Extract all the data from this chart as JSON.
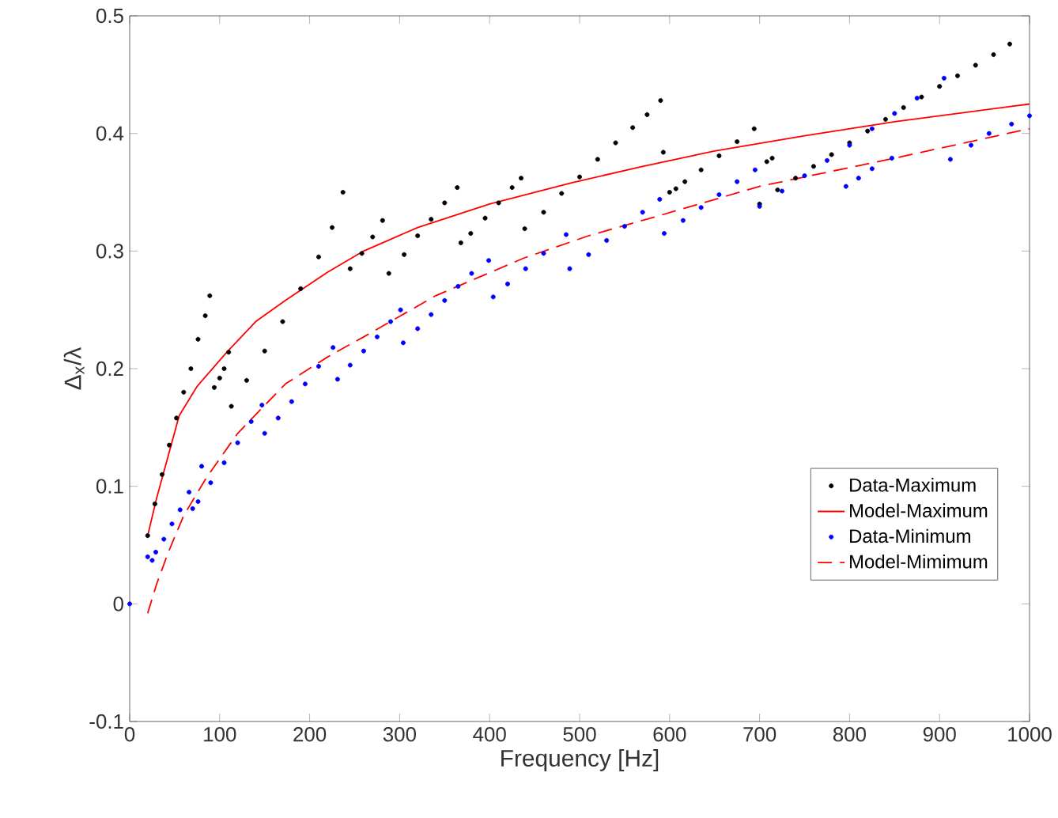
{
  "chart_data": {
    "type": "scatter",
    "xlabel": "Frequency [Hz]",
    "ylabel": "Δ$_{x}$/λ",
    "xlim": [
      0,
      1000
    ],
    "ylim": [
      -0.1,
      0.5
    ],
    "xticks": [
      0,
      100,
      200,
      300,
      400,
      500,
      600,
      700,
      800,
      900,
      1000
    ],
    "yticks": [
      -0.1,
      0,
      0.1,
      0.2,
      0.3,
      0.4,
      0.5
    ],
    "legend": "bottom right",
    "grid": false,
    "series": [
      {
        "name": "Data-Maximum",
        "marker": "circle",
        "color": "#000000",
        "x": [
          20,
          28,
          36,
          44,
          52,
          60,
          68,
          76,
          84,
          89,
          94,
          100,
          105,
          110,
          113,
          130,
          150,
          170,
          190,
          210,
          225,
          237,
          245,
          258,
          270,
          281,
          288,
          305,
          320,
          335,
          350,
          364,
          368,
          379,
          395,
          410,
          425,
          435,
          439,
          460,
          480,
          500,
          520,
          540,
          559,
          575,
          590,
          593,
          600,
          607,
          617,
          635,
          655,
          675,
          694,
          708,
          714,
          700,
          720,
          740,
          760,
          780,
          800,
          820,
          840,
          860,
          880,
          900,
          920,
          940,
          960,
          978
        ],
        "values": [
          0.058,
          0.085,
          0.11,
          0.135,
          0.158,
          0.18,
          0.2,
          0.225,
          0.245,
          0.262,
          0.184,
          0.192,
          0.2,
          0.214,
          0.168,
          0.19,
          0.215,
          0.24,
          0.268,
          0.295,
          0.32,
          0.35,
          0.285,
          0.298,
          0.312,
          0.326,
          0.281,
          0.297,
          0.313,
          0.327,
          0.341,
          0.354,
          0.307,
          0.315,
          0.328,
          0.341,
          0.354,
          0.362,
          0.319,
          0.333,
          0.349,
          0.363,
          0.378,
          0.392,
          0.405,
          0.416,
          0.428,
          0.384,
          0.35,
          0.353,
          0.359,
          0.369,
          0.381,
          0.393,
          0.404,
          0.376,
          0.379,
          0.34,
          0.352,
          0.362,
          0.372,
          0.382,
          0.392,
          0.402,
          0.412,
          0.422,
          0.431,
          0.44,
          0.449,
          0.458,
          0.467,
          0.476
        ]
      },
      {
        "name": "Model-Maximum",
        "type": "line",
        "marker": "none",
        "line_style": "solid",
        "color": "#ff0000",
        "x": [
          20,
          30,
          40,
          55,
          75,
          108,
          140,
          173,
          220,
          260,
          320,
          400,
          491,
          570,
          650,
          750,
          850,
          1000
        ],
        "values": [
          0.058,
          0.09,
          0.118,
          0.16,
          0.185,
          0.214,
          0.24,
          0.258,
          0.282,
          0.3,
          0.32,
          0.34,
          0.358,
          0.372,
          0.385,
          0.398,
          0.41,
          0.425
        ]
      },
      {
        "name": "Data-Minimum",
        "marker": "circle",
        "color": "#0000ff",
        "x": [
          0,
          20,
          25,
          29,
          38,
          47,
          56,
          66,
          70,
          80,
          76,
          90,
          105,
          120,
          135,
          147,
          150,
          165,
          180,
          195,
          210,
          226,
          231,
          245,
          260,
          275,
          290,
          301,
          304,
          320,
          335,
          350,
          365,
          380,
          399,
          404,
          420,
          440,
          460,
          485,
          489,
          510,
          530,
          550,
          570,
          589,
          594,
          615,
          635,
          655,
          675,
          695,
          700,
          725,
          750,
          775,
          800,
          825,
          850,
          875,
          905,
          796,
          810,
          825,
          847,
          912,
          935,
          955,
          980,
          1000
        ],
        "values": [
          0,
          0.04,
          0.037,
          0.044,
          0.055,
          0.068,
          0.08,
          0.095,
          0.081,
          0.117,
          0.087,
          0.103,
          0.12,
          0.137,
          0.155,
          0.169,
          0.145,
          0.158,
          0.172,
          0.187,
          0.202,
          0.218,
          0.191,
          0.203,
          0.215,
          0.227,
          0.24,
          0.25,
          0.222,
          0.234,
          0.246,
          0.258,
          0.27,
          0.281,
          0.292,
          0.261,
          0.272,
          0.285,
          0.298,
          0.314,
          0.285,
          0.297,
          0.309,
          0.321,
          0.333,
          0.344,
          0.315,
          0.326,
          0.337,
          0.348,
          0.359,
          0.369,
          0.338,
          0.351,
          0.364,
          0.377,
          0.39,
          0.404,
          0.417,
          0.43,
          0.447,
          0.355,
          0.362,
          0.37,
          0.379,
          0.378,
          0.39,
          0.4,
          0.408,
          0.415
        ]
      },
      {
        "name": "Model-Mimimum",
        "type": "line",
        "marker": "none",
        "line_style": "dashed",
        "color": "#ff0000",
        "x": [
          20,
          30,
          43,
          60,
          85,
          120,
          173,
          220,
          260,
          340,
          438,
          510,
          588,
          700,
          850,
          1000
        ],
        "values": [
          -0.008,
          0.017,
          0.044,
          0.075,
          0.107,
          0.145,
          0.187,
          0.21,
          0.227,
          0.262,
          0.294,
          0.313,
          0.33,
          0.355,
          0.379,
          0.404
        ]
      }
    ]
  }
}
